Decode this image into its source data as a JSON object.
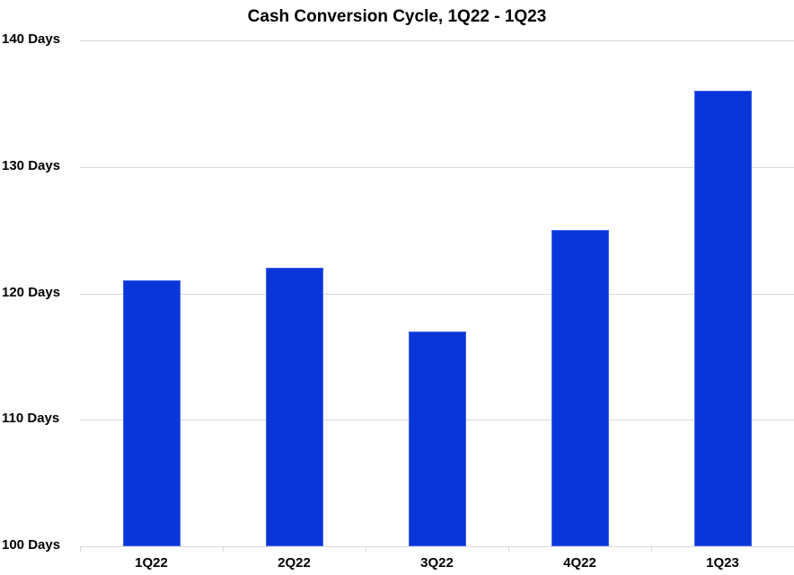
{
  "chart_data": {
    "type": "bar",
    "title": "Cash Conversion Cycle, 1Q22 - 1Q23",
    "xlabel": "",
    "ylabel": "",
    "categories": [
      "1Q22",
      "2Q22",
      "3Q22",
      "4Q22",
      "1Q23"
    ],
    "values": [
      121,
      122,
      117,
      125,
      136
    ],
    "unit": "Days",
    "ylim": [
      100,
      140
    ],
    "yticks": [
      100,
      110,
      120,
      130,
      140
    ],
    "ytick_labels": [
      "100 Days",
      "110 Days",
      "120 Days",
      "130 Days",
      "140 Days"
    ],
    "grid": true,
    "legend": null,
    "bar_color": "#0a36d9"
  }
}
